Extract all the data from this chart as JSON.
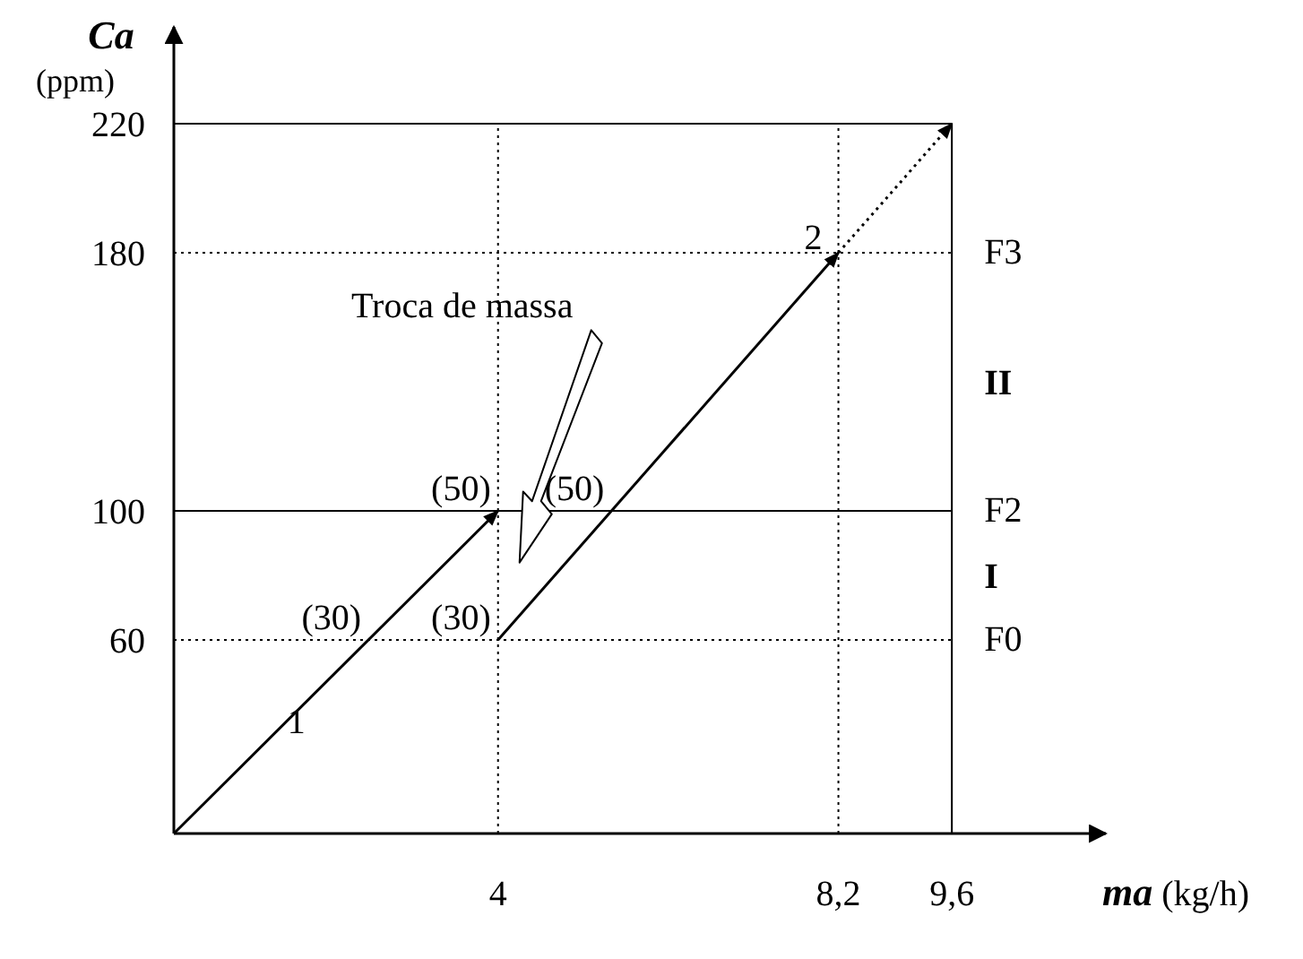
{
  "chart_data": {
    "type": "line",
    "xlabel": "ma (kg/h)",
    "ylabel": "Ca (ppm)",
    "xlim": [
      0,
      11.5
    ],
    "ylim": [
      0,
      250
    ],
    "xticks": [
      4,
      {
        "value": 8.2,
        "label": "8,2"
      },
      {
        "value": 9.6,
        "label": "9,6"
      }
    ],
    "yticks": [
      60,
      100,
      180,
      220
    ],
    "series": [
      {
        "name": "1",
        "color": "#000000",
        "x": [
          0,
          4
        ],
        "values": [
          0,
          100
        ]
      },
      {
        "name": "2",
        "color": "#000000",
        "x": [
          4,
          8.2
        ],
        "values": [
          60,
          180
        ]
      },
      {
        "color": "#000000",
        "x": [
          8.2,
          9.6
        ],
        "values": [
          180,
          220
        ],
        "line_style": "dotted"
      }
    ],
    "ref_lines": [
      {
        "axis": "y",
        "value": 60,
        "label": "F0",
        "line_style": "dotted"
      },
      {
        "axis": "y",
        "value": 100,
        "label": "F2",
        "line_style": "solid"
      },
      {
        "axis": "y",
        "value": 180,
        "label": "F3",
        "line_style": "dotted"
      },
      {
        "axis": "y",
        "value": 220,
        "line_style": "solid"
      },
      {
        "axis": "x",
        "value": 4,
        "line_style": "dotted"
      },
      {
        "axis": "x",
        "value": 8.2,
        "line_style": "dotted"
      },
      {
        "axis": "x",
        "value": 9.6,
        "line_style": "solid"
      }
    ],
    "annotations": [
      {
        "text": "(30)",
        "x": 2.4,
        "y": 60
      },
      {
        "text": "(50)",
        "x": 4,
        "y": 100
      },
      {
        "text": "(30)",
        "x": 4,
        "y": 60
      },
      {
        "text": "(50)",
        "x": 5.4,
        "y": 100
      },
      "Troca de massa",
      "I",
      "II"
    ]
  }
}
